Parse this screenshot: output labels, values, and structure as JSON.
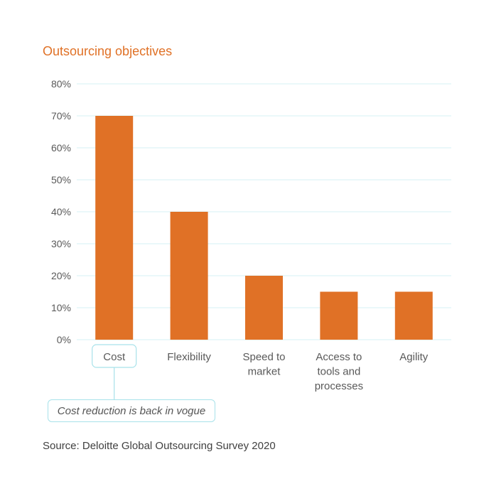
{
  "title": "Outsourcing objectives",
  "callout": "Cost reduction is back in vogue",
  "source": "Source: Deloitte Global Outsourcing Survey 2020",
  "colors": {
    "bar": "#e07126",
    "grid": "#d6f0f4",
    "highlight": "#a8e2ea",
    "title": "#e07126"
  },
  "chart_data": {
    "type": "bar",
    "categories": [
      [
        "Cost"
      ],
      [
        "Flexibility"
      ],
      [
        "Speed to",
        "market"
      ],
      [
        "Access to",
        "tools and",
        "processes"
      ],
      [
        "Agility"
      ]
    ],
    "values": [
      70,
      40,
      20,
      15,
      15
    ],
    "yticks": [
      "0%",
      "10%",
      "20%",
      "30%",
      "40%",
      "50%",
      "60%",
      "70%",
      "80%"
    ],
    "ylim": [
      0,
      80
    ],
    "grid": true,
    "highlight_category": 0
  }
}
